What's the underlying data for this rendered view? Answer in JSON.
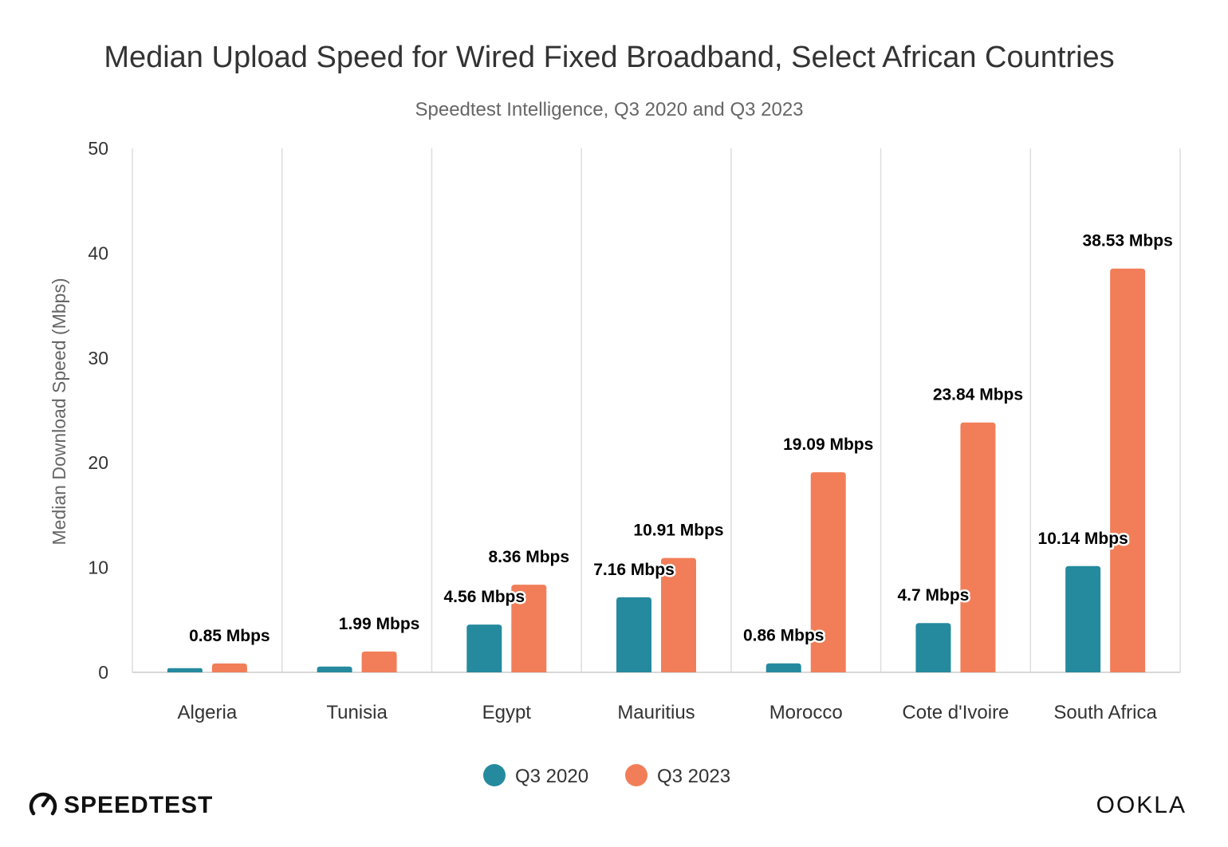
{
  "colors": {
    "q3_2020": "#258a9e",
    "q3_2023": "#f17e58",
    "grid": "#dddddd"
  },
  "brand": {
    "left": "SPEEDTEST",
    "right": "OOKLA"
  },
  "chart_data": {
    "type": "bar",
    "title": "Median Upload Speed for Wired Fixed Broadband, Select African Countries",
    "subtitle": "Speedtest Intelligence, Q3 2020 and Q3 2023",
    "xlabel": "",
    "ylabel": "Median Download Speed (Mbps)",
    "ylim": [
      0,
      50
    ],
    "yticks": [
      0,
      10,
      20,
      30,
      40,
      50
    ],
    "grid": "vertical",
    "legend_position": "bottom",
    "categories": [
      "Algeria",
      "Tunisia",
      "Egypt",
      "Mauritius",
      "Morocco",
      "Cote d'Ivoire",
      "South Africa"
    ],
    "series": [
      {
        "name": "Q3 2020",
        "values": [
          0.4,
          0.55,
          4.56,
          7.16,
          0.86,
          4.7,
          10.14
        ],
        "labels": [
          "",
          "",
          "4.56 Mbps",
          "7.16 Mbps",
          "0.86 Mbps",
          "4.7 Mbps",
          "10.14 Mbps"
        ]
      },
      {
        "name": "Q3 2023",
        "values": [
          0.85,
          1.99,
          8.36,
          10.91,
          19.09,
          23.84,
          38.53
        ],
        "labels": [
          "0.85 Mbps",
          "1.99 Mbps",
          "8.36 Mbps",
          "10.91 Mbps",
          "19.09 Mbps",
          "23.84 Mbps",
          "38.53 Mbps"
        ]
      }
    ]
  }
}
